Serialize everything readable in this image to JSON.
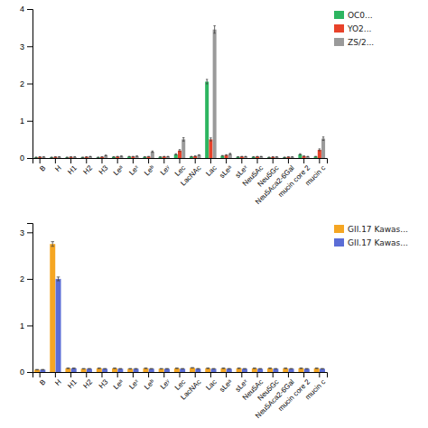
{
  "chart_data": [
    {
      "type": "bar",
      "categories": [
        "B",
        "H",
        "H1",
        "H2",
        "H3",
        "Leᵃ",
        "Leˣ",
        "Leᵇ",
        "Leʸ",
        "Lec",
        "LacNAc",
        "Lac",
        "sLeᵃ",
        "sLeˣ",
        "Neu5Ac",
        "Neu5Gc",
        "Neu5Aca2-6Gal",
        "mucin core 2",
        "mucin c"
      ],
      "series": [
        {
          "name": "OC0...",
          "color": "#2db560",
          "values": [
            0.02,
            0.02,
            0.02,
            0.02,
            0.02,
            0.03,
            0.04,
            0.03,
            0.03,
            0.1,
            0.04,
            2.05,
            0.06,
            0.03,
            0.03,
            0.02,
            0.02,
            0.1,
            0.04
          ],
          "errors": [
            0.003,
            0.003,
            0.003,
            0.003,
            0.003,
            0.004,
            0.004,
            0.004,
            0.003,
            0.015,
            0.005,
            0.06,
            0.008,
            0.004,
            0.003,
            0.003,
            0.003,
            0.015,
            0.005
          ]
        },
        {
          "name": "YO2...",
          "color": "#e8422a",
          "values": [
            0.03,
            0.03,
            0.03,
            0.03,
            0.03,
            0.04,
            0.04,
            0.04,
            0.04,
            0.2,
            0.05,
            0.5,
            0.08,
            0.04,
            0.04,
            0.03,
            0.03,
            0.05,
            0.22
          ],
          "errors": [
            0.003,
            0.003,
            0.003,
            0.003,
            0.003,
            0.005,
            0.004,
            0.004,
            0.004,
            0.025,
            0.006,
            0.04,
            0.01,
            0.004,
            0.004,
            0.003,
            0.003,
            0.006,
            0.025
          ]
        },
        {
          "name": "ZS/2...",
          "color": "#9a9a9a",
          "values": [
            0.03,
            0.03,
            0.03,
            0.04,
            0.07,
            0.05,
            0.05,
            0.17,
            0.04,
            0.5,
            0.08,
            3.45,
            0.11,
            0.04,
            0.04,
            0.03,
            0.03,
            0.04,
            0.52
          ],
          "errors": [
            0.003,
            0.003,
            0.003,
            0.004,
            0.008,
            0.005,
            0.005,
            0.018,
            0.004,
            0.045,
            0.009,
            0.1,
            0.015,
            0.004,
            0.004,
            0.003,
            0.003,
            0.004,
            0.045
          ]
        }
      ],
      "ylim": [
        0,
        4.0
      ],
      "yticks": [
        0,
        1,
        2,
        3,
        4
      ],
      "legend": "upper right"
    },
    {
      "type": "bar",
      "categories": [
        "B",
        "H",
        "H1",
        "H2",
        "H3",
        "Leᵃ",
        "Leˣ",
        "Leᵇ",
        "Leʸ",
        "Lec",
        "LacNAc",
        "Lac",
        "sLeᵃ",
        "sLeˣ",
        "Neu5Ac",
        "Neu5Gc",
        "Neu5Aca2-6Gal",
        "mucin core 2",
        "mucin c"
      ],
      "series": [
        {
          "name": "GII.17 Kawas...",
          "color": "#f5a623",
          "values": [
            0.05,
            2.75,
            0.08,
            0.07,
            0.08,
            0.08,
            0.07,
            0.08,
            0.07,
            0.08,
            0.09,
            0.08,
            0.08,
            0.08,
            0.08,
            0.08,
            0.08,
            0.08,
            0.08
          ],
          "errors": [
            0.005,
            0.05,
            0.005,
            0.005,
            0.005,
            0.005,
            0.005,
            0.005,
            0.005,
            0.005,
            0.005,
            0.005,
            0.005,
            0.005,
            0.005,
            0.005,
            0.005,
            0.005,
            0.005
          ]
        },
        {
          "name": "GII.17 Kawas...",
          "color": "#5b6dd6",
          "values": [
            0.05,
            2.0,
            0.08,
            0.07,
            0.07,
            0.07,
            0.07,
            0.07,
            0.07,
            0.07,
            0.07,
            0.07,
            0.07,
            0.07,
            0.07,
            0.07,
            0.07,
            0.07,
            0.07
          ],
          "errors": [
            0.005,
            0.04,
            0.005,
            0.005,
            0.005,
            0.005,
            0.005,
            0.005,
            0.005,
            0.005,
            0.005,
            0.005,
            0.005,
            0.005,
            0.005,
            0.005,
            0.005,
            0.005,
            0.005
          ]
        }
      ],
      "ylim": [
        0,
        3.2
      ],
      "yticks": [
        0,
        1,
        2,
        3
      ],
      "legend": "upper right"
    }
  ]
}
